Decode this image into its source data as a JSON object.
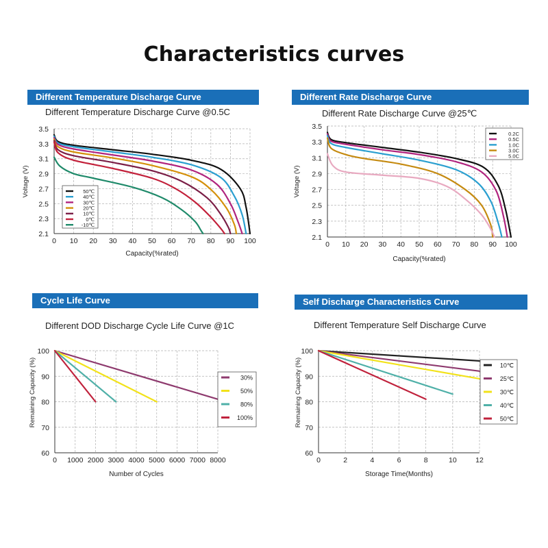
{
  "title": "Characteristics curves",
  "panels": [
    {
      "banner": "Different Temperature Discharge Curve",
      "subtitle": "Different Temperature Discharge Curve @0.5C"
    },
    {
      "banner": "Different Rate Discharge Curve",
      "subtitle": "Different Rate Discharge Curve @25℃"
    },
    {
      "banner": "Cycle Life Curve",
      "subtitle": "Different DOD Discharge Cycle Life Curve @1C"
    },
    {
      "banner": "Self Discharge Characteristics Curve",
      "subtitle": "Different Temperature Self Discharge Curve"
    }
  ],
  "colors": {
    "banner": "#1a6fb8",
    "grid": "#b0b0b0"
  },
  "chart_data": [
    {
      "type": "line",
      "title": "Different Temperature Discharge Curve @0.5C",
      "xlabel": "Capacity(%rated)",
      "ylabel": "Voltage (V)",
      "xlim": [
        0,
        100
      ],
      "ylim": [
        2.1,
        3.5
      ],
      "xticks": [
        0,
        10,
        20,
        30,
        40,
        50,
        60,
        70,
        80,
        90,
        100
      ],
      "yticks": [
        2.1,
        2.3,
        2.5,
        2.7,
        2.9,
        3.1,
        3.3,
        3.5
      ],
      "ytick_labels": [
        "2.1",
        "2.3",
        "2.5",
        "2.7",
        "2.9",
        "3.1",
        "3.3",
        "3.5"
      ],
      "grid": true,
      "legend_position": "bottom-left",
      "series": [
        {
          "name": "50℃",
          "color": "#111111",
          "points": [
            [
              0,
              3.42
            ],
            [
              2,
              3.33
            ],
            [
              10,
              3.28
            ],
            [
              30,
              3.22
            ],
            [
              50,
              3.16
            ],
            [
              70,
              3.08
            ],
            [
              85,
              2.96
            ],
            [
              95,
              2.7
            ],
            [
              98,
              2.45
            ],
            [
              100,
              2.1
            ]
          ]
        },
        {
          "name": "40℃",
          "color": "#2a9fd0",
          "points": [
            [
              0,
              3.4
            ],
            [
              2,
              3.31
            ],
            [
              10,
              3.26
            ],
            [
              30,
              3.19
            ],
            [
              50,
              3.12
            ],
            [
              70,
              3.02
            ],
            [
              85,
              2.85
            ],
            [
              92,
              2.6
            ],
            [
              96,
              2.35
            ],
            [
              98,
              2.1
            ]
          ]
        },
        {
          "name": "30℃",
          "color": "#b0237e",
          "points": [
            [
              0,
              3.38
            ],
            [
              2,
              3.29
            ],
            [
              10,
              3.23
            ],
            [
              30,
              3.15
            ],
            [
              50,
              3.07
            ],
            [
              70,
              2.95
            ],
            [
              83,
              2.76
            ],
            [
              90,
              2.5
            ],
            [
              94,
              2.25
            ],
            [
              96,
              2.1
            ]
          ]
        },
        {
          "name": "20℃",
          "color": "#d4900a",
          "points": [
            [
              0,
              3.36
            ],
            [
              2,
              3.26
            ],
            [
              10,
              3.19
            ],
            [
              30,
              3.11
            ],
            [
              50,
              3.01
            ],
            [
              70,
              2.86
            ],
            [
              80,
              2.69
            ],
            [
              88,
              2.44
            ],
            [
              92,
              2.22
            ],
            [
              93,
              2.1
            ]
          ]
        },
        {
          "name": "10℃",
          "color": "#7a1e46",
          "points": [
            [
              0,
              3.34
            ],
            [
              2,
              3.22
            ],
            [
              10,
              3.14
            ],
            [
              30,
              3.05
            ],
            [
              50,
              2.94
            ],
            [
              65,
              2.8
            ],
            [
              78,
              2.58
            ],
            [
              85,
              2.36
            ],
            [
              89,
              2.18
            ],
            [
              90,
              2.1
            ]
          ]
        },
        {
          "name": "0℃",
          "color": "#c2203a",
          "points": [
            [
              0,
              3.32
            ],
            [
              2,
              3.18
            ],
            [
              10,
              3.08
            ],
            [
              30,
              2.97
            ],
            [
              50,
              2.84
            ],
            [
              62,
              2.7
            ],
            [
              72,
              2.52
            ],
            [
              80,
              2.32
            ],
            [
              85,
              2.17
            ],
            [
              87,
              2.1
            ]
          ]
        },
        {
          "name": "-10℃",
          "color": "#1f8a6a",
          "points": [
            [
              0,
              3.12
            ],
            [
              3,
              3.0
            ],
            [
              10,
              2.9
            ],
            [
              20,
              2.84
            ],
            [
              40,
              2.72
            ],
            [
              55,
              2.58
            ],
            [
              65,
              2.42
            ],
            [
              72,
              2.26
            ],
            [
              75,
              2.14
            ],
            [
              76,
              2.1
            ]
          ]
        }
      ]
    },
    {
      "type": "line",
      "title": "Different Rate Discharge Curve @25℃",
      "xlabel": "Capacity(%rated)",
      "ylabel": "Voltage (V)",
      "xlim": [
        0,
        100
      ],
      "ylim": [
        2.1,
        3.5
      ],
      "xticks": [
        0,
        10,
        20,
        30,
        40,
        50,
        60,
        70,
        80,
        90,
        100
      ],
      "yticks": [
        2.1,
        2.3,
        2.5,
        2.7,
        2.9,
        3.1,
        3.3,
        3.5
      ],
      "ytick_labels": [
        "2.1",
        "2.3",
        "2.5",
        "2.7",
        "2.9",
        "3.1",
        "3.3",
        "3.5"
      ],
      "grid": true,
      "legend_position": "top-right",
      "series": [
        {
          "name": "0.2C",
          "color": "#111111",
          "points": [
            [
              0,
              3.42
            ],
            [
              2,
              3.33
            ],
            [
              10,
              3.29
            ],
            [
              30,
              3.23
            ],
            [
              50,
              3.17
            ],
            [
              70,
              3.09
            ],
            [
              85,
              2.98
            ],
            [
              93,
              2.75
            ],
            [
              97,
              2.45
            ],
            [
              100,
              2.1
            ]
          ]
        },
        {
          "name": "0.5C",
          "color": "#b0237e",
          "points": [
            [
              0,
              3.4
            ],
            [
              2,
              3.31
            ],
            [
              10,
              3.27
            ],
            [
              30,
              3.2
            ],
            [
              50,
              3.14
            ],
            [
              70,
              3.05
            ],
            [
              84,
              2.92
            ],
            [
              92,
              2.68
            ],
            [
              96,
              2.35
            ],
            [
              98,
              2.1
            ]
          ]
        },
        {
          "name": "1.0C",
          "color": "#2a9fd0",
          "points": [
            [
              0,
              3.38
            ],
            [
              2,
              3.28
            ],
            [
              10,
              3.23
            ],
            [
              30,
              3.15
            ],
            [
              50,
              3.07
            ],
            [
              70,
              2.95
            ],
            [
              82,
              2.78
            ],
            [
              89,
              2.55
            ],
            [
              93,
              2.28
            ],
            [
              95,
              2.1
            ]
          ]
        },
        {
          "name": "3.0C",
          "color": "#c58a10",
          "points": [
            [
              0,
              3.35
            ],
            [
              2,
              3.22
            ],
            [
              10,
              3.14
            ],
            [
              20,
              3.09
            ],
            [
              40,
              3.02
            ],
            [
              60,
              2.9
            ],
            [
              75,
              2.7
            ],
            [
              84,
              2.5
            ],
            [
              89,
              2.25
            ],
            [
              90,
              2.1
            ]
          ]
        },
        {
          "name": "5.0C",
          "color": "#e8a9c0",
          "points": [
            [
              0,
              3.15
            ],
            [
              3,
              3.0
            ],
            [
              10,
              2.92
            ],
            [
              30,
              2.88
            ],
            [
              50,
              2.84
            ],
            [
              65,
              2.74
            ],
            [
              75,
              2.58
            ],
            [
              84,
              2.38
            ],
            [
              89,
              2.2
            ],
            [
              91,
              2.1
            ]
          ]
        }
      ]
    },
    {
      "type": "line",
      "title": "Different DOD Discharge Cycle Life Curve @1C",
      "xlabel": "Number of Cycles",
      "ylabel": "Remaining Capacity (%)",
      "xlim": [
        0,
        8000
      ],
      "ylim": [
        60,
        100
      ],
      "xticks": [
        0,
        1000,
        2000,
        3000,
        4000,
        5000,
        6000,
        7000,
        8000
      ],
      "yticks": [
        60,
        70,
        80,
        90,
        100
      ],
      "ytick_labels": [
        "60",
        "70",
        "80",
        "90",
        "100"
      ],
      "grid": true,
      "legend_position": "right",
      "series": [
        {
          "name": "30%",
          "color": "#8e3a6e",
          "points": [
            [
              0,
              100
            ],
            [
              8000,
              81
            ]
          ]
        },
        {
          "name": "50%",
          "color": "#f2e21a",
          "points": [
            [
              0,
              100
            ],
            [
              5000,
              80
            ]
          ]
        },
        {
          "name": "80%",
          "color": "#4fb0a8",
          "points": [
            [
              0,
              100
            ],
            [
              3000,
              80
            ]
          ]
        },
        {
          "name": "100%",
          "color": "#c0223c",
          "points": [
            [
              0,
              100
            ],
            [
              2000,
              80
            ]
          ]
        }
      ]
    },
    {
      "type": "line",
      "title": "Different Temperature Self Discharge Curve",
      "xlabel": "Storage Time(Months)",
      "ylabel": "Remaining Capacity (%)",
      "xlim": [
        0,
        12
      ],
      "ylim": [
        60,
        100
      ],
      "xticks": [
        0,
        2,
        4,
        6,
        8,
        10,
        12
      ],
      "yticks": [
        60,
        70,
        80,
        90,
        100
      ],
      "ytick_labels": [
        "60",
        "70",
        "80",
        "90",
        "100"
      ],
      "grid": true,
      "legend_position": "right",
      "series": [
        {
          "name": "10℃",
          "color": "#222222",
          "points": [
            [
              0,
              100
            ],
            [
              12,
              96
            ]
          ]
        },
        {
          "name": "25℃",
          "color": "#8e3a6e",
          "points": [
            [
              0,
              100
            ],
            [
              12,
              92
            ]
          ]
        },
        {
          "name": "30℃",
          "color": "#f2e21a",
          "points": [
            [
              0,
              100
            ],
            [
              12,
              89
            ]
          ]
        },
        {
          "name": "40℃",
          "color": "#4fb0a8",
          "points": [
            [
              0,
              100
            ],
            [
              10,
              83
            ]
          ]
        },
        {
          "name": "50℃",
          "color": "#c0223c",
          "points": [
            [
              0,
              100
            ],
            [
              8,
              81
            ]
          ]
        }
      ]
    }
  ]
}
